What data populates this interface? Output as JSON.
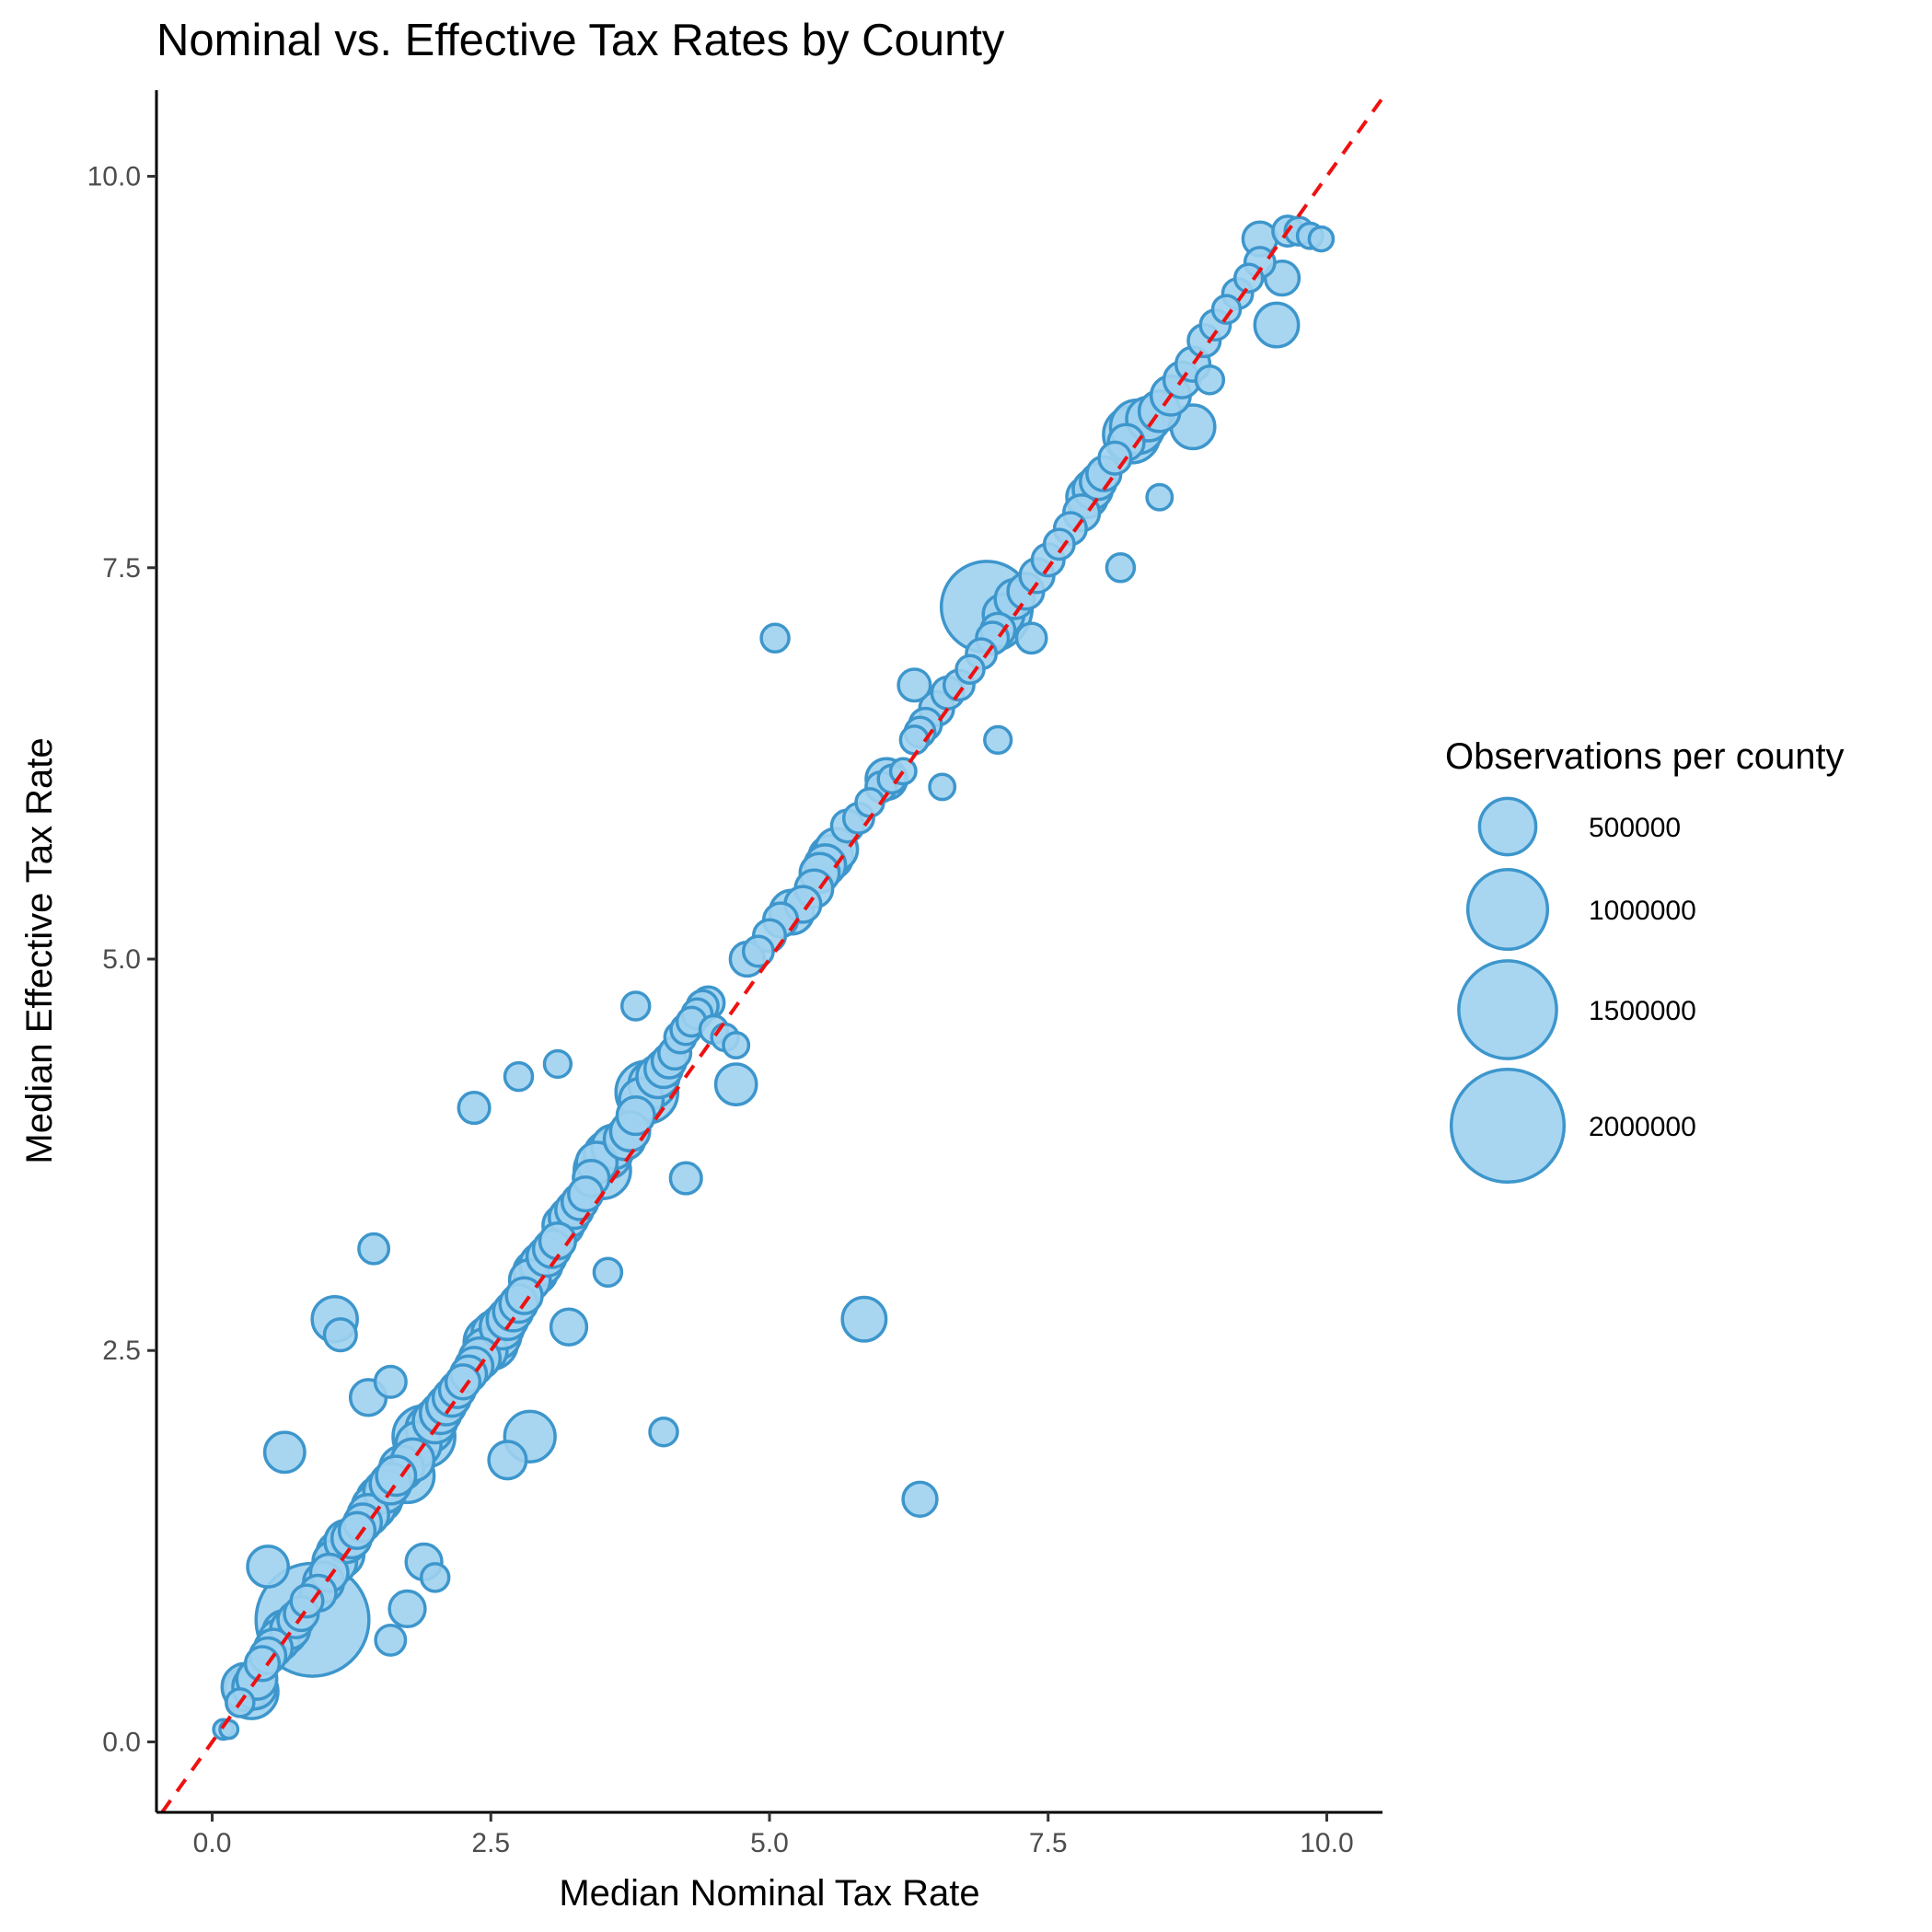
{
  "chart_data": {
    "type": "scatter",
    "title": "Nominal vs. Effective Tax Rates by County",
    "xlabel": "Median Nominal Tax Rate",
    "ylabel": "Median Effective Tax Rate",
    "xlim": [
      -0.5,
      10.5
    ],
    "ylim": [
      -0.45,
      10.55
    ],
    "x_ticks": [
      0.0,
      2.5,
      5.0,
      7.5,
      10.0
    ],
    "x_tick_labels": [
      "0.0",
      "2.5",
      "5.0",
      "7.5",
      "10.0"
    ],
    "y_ticks": [
      0.0,
      2.5,
      5.0,
      7.5,
      10.0
    ],
    "y_tick_labels": [
      "0.0",
      "2.5",
      "5.0",
      "7.5",
      "10.0"
    ],
    "grid": false,
    "reference_line": {
      "type": "identity",
      "style": "dashed",
      "color": "#ee1111"
    },
    "point_fill": "#9ed2f0",
    "point_stroke": "#3d96cc",
    "size_variable": "Observations per county",
    "legend": {
      "title": "Observations per county",
      "placement": "right",
      "entries": [
        {
          "label": "500000",
          "value": 500000
        },
        {
          "label": "1000000",
          "value": 1000000
        },
        {
          "label": "1500000",
          "value": 1500000
        },
        {
          "label": "2000000",
          "value": 2000000
        }
      ]
    },
    "points": [
      [
        0.1,
        0.08,
        60000
      ],
      [
        0.15,
        0.08,
        50000
      ],
      [
        0.25,
        0.25,
        120000
      ],
      [
        0.3,
        0.35,
        350000
      ],
      [
        0.35,
        0.32,
        450000
      ],
      [
        0.38,
        0.35,
        300000
      ],
      [
        0.4,
        0.4,
        250000
      ],
      [
        0.45,
        0.5,
        180000
      ],
      [
        0.5,
        0.55,
        200000
      ],
      [
        0.55,
        0.6,
        220000
      ],
      [
        0.6,
        0.65,
        260000
      ],
      [
        0.65,
        0.7,
        300000
      ],
      [
        0.7,
        0.72,
        240000
      ],
      [
        0.75,
        0.78,
        200000
      ],
      [
        0.8,
        0.82,
        180000
      ],
      [
        0.85,
        0.9,
        160000
      ],
      [
        0.9,
        0.78,
        2000000
      ],
      [
        0.95,
        0.95,
        200000
      ],
      [
        1.0,
        1.02,
        250000
      ],
      [
        1.05,
        1.08,
        220000
      ],
      [
        1.1,
        1.15,
        300000
      ],
      [
        1.15,
        1.2,
        350000
      ],
      [
        1.2,
        1.28,
        280000
      ],
      [
        1.25,
        1.3,
        240000
      ],
      [
        1.3,
        1.35,
        200000
      ],
      [
        1.35,
        1.4,
        220000
      ],
      [
        1.4,
        1.45,
        260000
      ],
      [
        1.45,
        1.5,
        300000
      ],
      [
        1.5,
        1.55,
        320000
      ],
      [
        1.55,
        1.6,
        280000
      ],
      [
        1.6,
        1.65,
        260000
      ],
      [
        1.65,
        1.7,
        240000
      ],
      [
        1.7,
        1.75,
        300000
      ],
      [
        1.75,
        1.7,
        450000
      ],
      [
        1.8,
        1.8,
        280000
      ],
      [
        1.85,
        1.9,
        320000
      ],
      [
        1.9,
        1.95,
        600000
      ],
      [
        1.95,
        2.0,
        350000
      ],
      [
        2.0,
        2.05,
        300000
      ],
      [
        2.05,
        2.1,
        260000
      ],
      [
        2.1,
        2.15,
        240000
      ],
      [
        2.15,
        2.2,
        220000
      ],
      [
        2.2,
        2.25,
        200000
      ],
      [
        2.25,
        2.3,
        180000
      ],
      [
        2.3,
        2.35,
        200000
      ],
      [
        2.35,
        2.4,
        220000
      ],
      [
        2.4,
        2.45,
        260000
      ],
      [
        2.45,
        2.5,
        300000
      ],
      [
        2.5,
        2.55,
        450000
      ],
      [
        2.55,
        2.6,
        380000
      ],
      [
        2.6,
        2.65,
        300000
      ],
      [
        2.65,
        2.7,
        260000
      ],
      [
        2.7,
        2.75,
        240000
      ],
      [
        2.75,
        2.8,
        220000
      ],
      [
        2.8,
        2.85,
        200000
      ],
      [
        2.85,
        2.95,
        260000
      ],
      [
        2.9,
        3.0,
        300000
      ],
      [
        2.95,
        3.05,
        280000
      ],
      [
        3.0,
        3.1,
        240000
      ],
      [
        3.05,
        3.15,
        220000
      ],
      [
        3.1,
        3.2,
        200000
      ],
      [
        3.15,
        3.3,
        260000
      ],
      [
        3.2,
        3.35,
        240000
      ],
      [
        3.25,
        3.4,
        220000
      ],
      [
        3.3,
        3.45,
        200000
      ],
      [
        3.35,
        3.5,
        180000
      ],
      [
        3.4,
        3.6,
        200000
      ],
      [
        3.45,
        3.7,
        260000
      ],
      [
        3.5,
        3.65,
        500000
      ],
      [
        3.55,
        3.75,
        350000
      ],
      [
        3.6,
        3.8,
        300000
      ],
      [
        3.7,
        3.85,
        260000
      ],
      [
        3.75,
        3.9,
        240000
      ],
      [
        3.8,
        4.0,
        220000
      ],
      [
        3.85,
        4.1,
        300000
      ],
      [
        3.9,
        4.15,
        600000
      ],
      [
        3.95,
        4.2,
        350000
      ],
      [
        4.0,
        4.25,
        280000
      ],
      [
        4.05,
        4.3,
        220000
      ],
      [
        4.1,
        4.35,
        180000
      ],
      [
        4.15,
        4.4,
        160000
      ],
      [
        4.2,
        4.5,
        150000
      ],
      [
        4.25,
        4.55,
        140000
      ],
      [
        4.3,
        4.6,
        130000
      ],
      [
        4.35,
        4.65,
        140000
      ],
      [
        4.4,
        4.7,
        150000
      ],
      [
        4.45,
        4.72,
        160000
      ],
      [
        4.5,
        4.55,
        120000
      ],
      [
        4.6,
        4.5,
        110000
      ],
      [
        4.7,
        4.45,
        100000
      ],
      [
        4.7,
        4.2,
        260000
      ],
      [
        4.8,
        5.0,
        180000
      ],
      [
        4.9,
        5.05,
        140000
      ],
      [
        5.0,
        5.15,
        160000
      ],
      [
        5.1,
        5.25,
        180000
      ],
      [
        5.2,
        5.3,
        300000
      ],
      [
        5.3,
        5.35,
        200000
      ],
      [
        5.4,
        5.45,
        220000
      ],
      [
        5.45,
        5.55,
        240000
      ],
      [
        5.5,
        5.6,
        260000
      ],
      [
        5.55,
        5.65,
        300000
      ],
      [
        5.6,
        5.7,
        280000
      ],
      [
        5.7,
        5.85,
        160000
      ],
      [
        5.8,
        5.9,
        140000
      ],
      [
        5.9,
        6.0,
        120000
      ],
      [
        6.0,
        6.1,
        140000
      ],
      [
        6.1,
        6.15,
        120000
      ],
      [
        6.2,
        6.2,
        100000
      ],
      [
        6.3,
        6.4,
        120000
      ],
      [
        6.35,
        6.45,
        140000
      ],
      [
        6.4,
        6.5,
        160000
      ],
      [
        6.5,
        6.6,
        180000
      ],
      [
        6.6,
        6.7,
        160000
      ],
      [
        6.7,
        6.75,
        140000
      ],
      [
        6.8,
        6.85,
        120000
      ],
      [
        6.9,
        6.95,
        140000
      ],
      [
        7.0,
        7.05,
        160000
      ],
      [
        7.05,
        7.1,
        180000
      ],
      [
        6.95,
        7.25,
        1300000
      ],
      [
        7.1,
        7.2,
        260000
      ],
      [
        7.2,
        7.3,
        240000
      ],
      [
        7.3,
        7.35,
        200000
      ],
      [
        7.4,
        7.45,
        180000
      ],
      [
        7.5,
        7.55,
        160000
      ],
      [
        7.6,
        7.65,
        140000
      ],
      [
        7.7,
        7.75,
        160000
      ],
      [
        7.8,
        7.85,
        200000
      ],
      [
        7.85,
        7.95,
        260000
      ],
      [
        7.9,
        8.0,
        240000
      ],
      [
        7.95,
        8.05,
        200000
      ],
      [
        8.0,
        8.1,
        180000
      ],
      [
        8.1,
        8.2,
        160000
      ],
      [
        8.2,
        8.3,
        200000
      ],
      [
        8.25,
        8.35,
        500000
      ],
      [
        8.3,
        8.4,
        450000
      ],
      [
        8.4,
        8.45,
        300000
      ],
      [
        8.5,
        8.5,
        260000
      ],
      [
        8.6,
        8.6,
        240000
      ],
      [
        8.7,
        8.7,
        200000
      ],
      [
        8.8,
        8.4,
        300000
      ],
      [
        8.8,
        8.8,
        180000
      ],
      [
        8.9,
        8.95,
        160000
      ],
      [
        9.0,
        9.05,
        140000
      ],
      [
        9.1,
        9.15,
        120000
      ],
      [
        9.2,
        9.25,
        140000
      ],
      [
        9.3,
        9.35,
        120000
      ],
      [
        9.4,
        9.45,
        140000
      ],
      [
        9.4,
        9.6,
        180000
      ],
      [
        9.55,
        9.05,
        300000
      ],
      [
        9.6,
        9.35,
        180000
      ],
      [
        9.65,
        9.65,
        140000
      ],
      [
        9.75,
        9.65,
        120000
      ],
      [
        9.85,
        9.62,
        100000
      ],
      [
        9.95,
        9.6,
        90000
      ],
      [
        0.5,
        1.12,
        260000
      ],
      [
        0.65,
        1.85,
        250000
      ],
      [
        1.1,
        2.7,
        320000
      ],
      [
        1.15,
        2.6,
        160000
      ],
      [
        1.4,
        2.2,
        200000
      ],
      [
        1.45,
        3.15,
        140000
      ],
      [
        1.6,
        2.3,
        150000
      ],
      [
        2.35,
        4.05,
        150000
      ],
      [
        2.75,
        4.25,
        120000
      ],
      [
        3.1,
        4.33,
        110000
      ],
      [
        3.8,
        4.7,
        120000
      ],
      [
        5.05,
        7.05,
        120000
      ],
      [
        4.05,
        1.98,
        120000
      ],
      [
        5.85,
        2.7,
        300000
      ],
      [
        6.35,
        1.55,
        180000
      ],
      [
        2.85,
        1.95,
        400000
      ],
      [
        2.65,
        1.8,
        220000
      ],
      [
        1.6,
        0.65,
        140000
      ],
      [
        1.75,
        0.85,
        200000
      ],
      [
        2.0,
        1.05,
        120000
      ],
      [
        1.9,
        1.15,
        200000
      ],
      [
        4.25,
        3.6,
        150000
      ],
      [
        3.55,
        3.0,
        120000
      ],
      [
        3.2,
        2.65,
        200000
      ],
      [
        6.55,
        6.1,
        100000
      ],
      [
        6.05,
        6.15,
        260000
      ],
      [
        7.05,
        6.4,
        110000
      ],
      [
        7.35,
        7.05,
        140000
      ],
      [
        8.15,
        7.5,
        120000
      ],
      [
        8.5,
        7.95,
        100000
      ],
      [
        8.95,
        8.7,
        120000
      ],
      [
        6.3,
        6.75,
        160000
      ]
    ]
  }
}
